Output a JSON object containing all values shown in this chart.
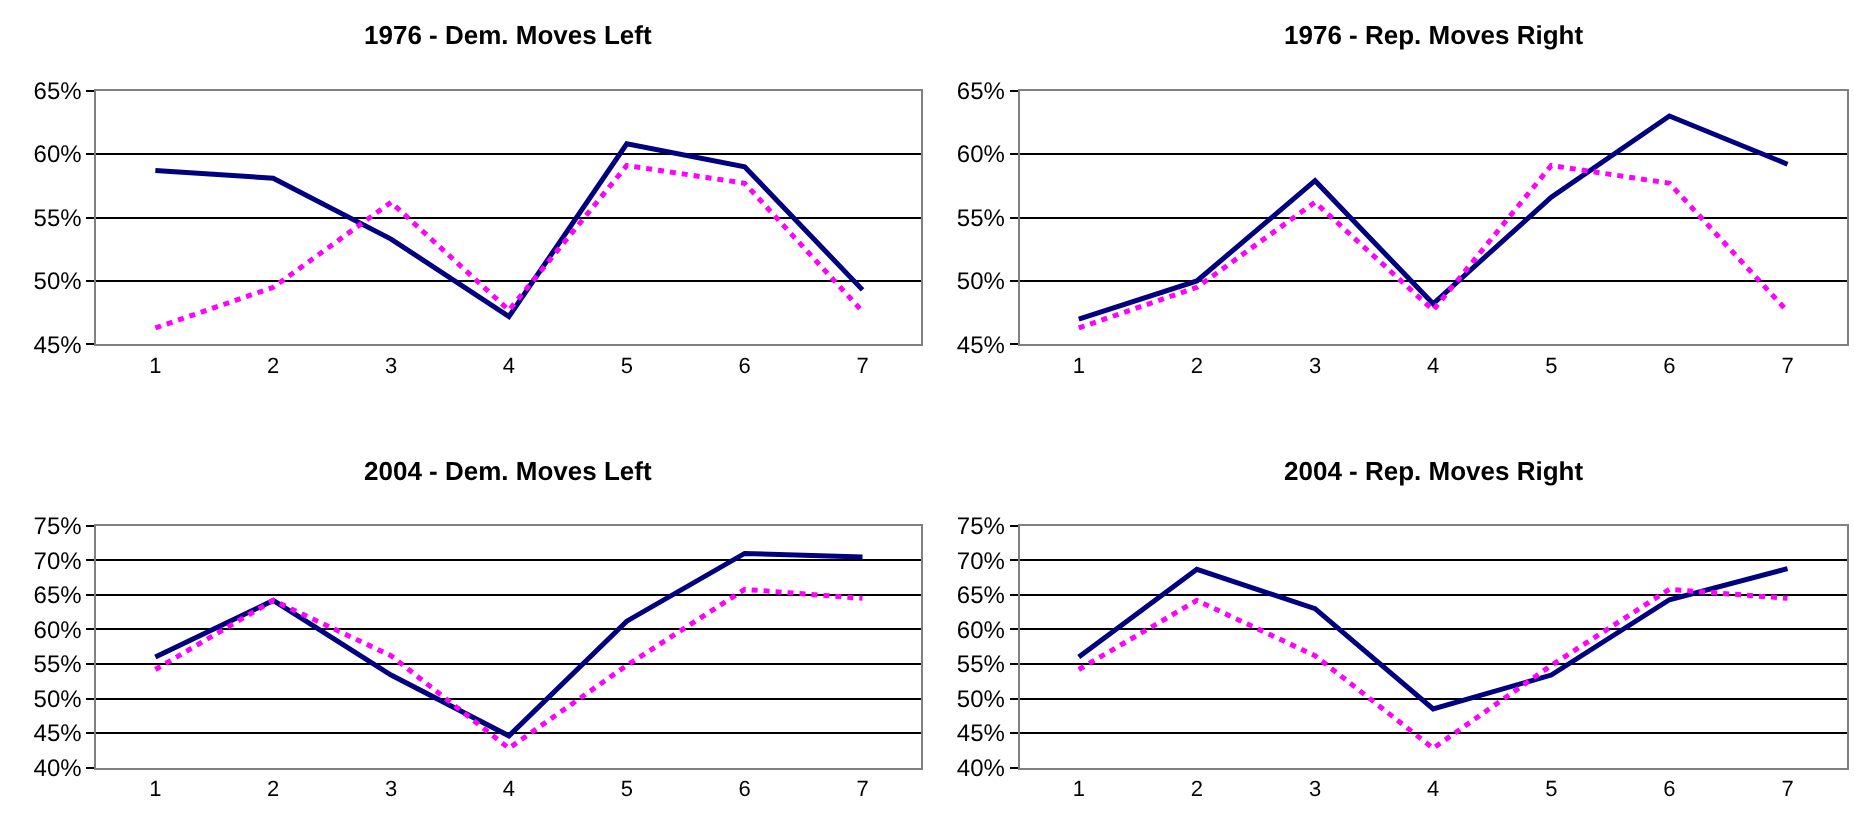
{
  "chart_data": [
    {
      "type": "line",
      "title": "1976 - Dem. Moves Left",
      "categories": [
        "1",
        "2",
        "3",
        "4",
        "5",
        "6",
        "7"
      ],
      "ylim": [
        45,
        65
      ],
      "yticks": [
        {
          "value": 45,
          "label": "45%"
        },
        {
          "value": 50,
          "label": "50%"
        },
        {
          "value": 55,
          "label": "55%"
        },
        {
          "value": 60,
          "label": "60%"
        },
        {
          "value": 65,
          "label": "65%"
        }
      ],
      "grid": "y",
      "marker": "none",
      "series": [
        {
          "color": "#000080",
          "line_style": "solid",
          "values": [
            58.7,
            58.1,
            53.3,
            47.2,
            60.8,
            59.0,
            49.3
          ]
        },
        {
          "color": "#ff00ff",
          "line_style": "dotted",
          "values": [
            46.3,
            49.5,
            56.2,
            47.7,
            59.1,
            57.7,
            47.6
          ]
        }
      ]
    },
    {
      "type": "line",
      "title": "1976 - Rep. Moves Right",
      "categories": [
        "1",
        "2",
        "3",
        "4",
        "5",
        "6",
        "7"
      ],
      "ylim": [
        45,
        65
      ],
      "yticks": [
        {
          "value": 45,
          "label": "45%"
        },
        {
          "value": 50,
          "label": "50%"
        },
        {
          "value": 55,
          "label": "55%"
        },
        {
          "value": 60,
          "label": "60%"
        },
        {
          "value": 65,
          "label": "65%"
        }
      ],
      "grid": "y",
      "marker": "none",
      "series": [
        {
          "color": "#000080",
          "line_style": "solid",
          "values": [
            47.0,
            50.0,
            57.9,
            48.2,
            56.6,
            63.0,
            59.2
          ]
        },
        {
          "color": "#ff00ff",
          "line_style": "dotted",
          "values": [
            46.3,
            49.5,
            56.2,
            47.7,
            59.1,
            57.7,
            47.6
          ]
        }
      ]
    },
    {
      "type": "line",
      "title": "2004 - Dem. Moves Left",
      "categories": [
        "1",
        "2",
        "3",
        "4",
        "5",
        "6",
        "7"
      ],
      "ylim": [
        40,
        75
      ],
      "yticks": [
        {
          "value": 40,
          "label": "40%"
        },
        {
          "value": 45,
          "label": "45%"
        },
        {
          "value": 50,
          "label": "50%"
        },
        {
          "value": 55,
          "label": "55%"
        },
        {
          "value": 60,
          "label": "60%"
        },
        {
          "value": 65,
          "label": "65%"
        },
        {
          "value": 70,
          "label": "70%"
        },
        {
          "value": 75,
          "label": "75%"
        }
      ],
      "grid": "y",
      "marker": "none",
      "series": [
        {
          "color": "#000080",
          "line_style": "solid",
          "values": [
            56.0,
            64.2,
            53.4,
            44.6,
            61.2,
            71.0,
            70.5
          ]
        },
        {
          "color": "#ff00ff",
          "line_style": "dotted",
          "values": [
            54.2,
            64.2,
            56.2,
            42.8,
            54.8,
            65.8,
            64.5
          ]
        }
      ]
    },
    {
      "type": "line",
      "title": "2004 - Rep. Moves Right",
      "categories": [
        "1",
        "2",
        "3",
        "4",
        "5",
        "6",
        "7"
      ],
      "ylim": [
        40,
        75
      ],
      "yticks": [
        {
          "value": 40,
          "label": "40%"
        },
        {
          "value": 45,
          "label": "45%"
        },
        {
          "value": 50,
          "label": "50%"
        },
        {
          "value": 55,
          "label": "55%"
        },
        {
          "value": 60,
          "label": "60%"
        },
        {
          "value": 65,
          "label": "65%"
        },
        {
          "value": 70,
          "label": "70%"
        },
        {
          "value": 75,
          "label": "75%"
        }
      ],
      "grid": "y",
      "marker": "none",
      "series": [
        {
          "color": "#000080",
          "line_style": "solid",
          "values": [
            56.0,
            68.7,
            63.0,
            48.5,
            53.4,
            64.3,
            68.8
          ]
        },
        {
          "color": "#ff00ff",
          "line_style": "dotted",
          "values": [
            54.2,
            64.2,
            56.2,
            42.8,
            54.8,
            65.8,
            64.5
          ]
        }
      ]
    }
  ]
}
